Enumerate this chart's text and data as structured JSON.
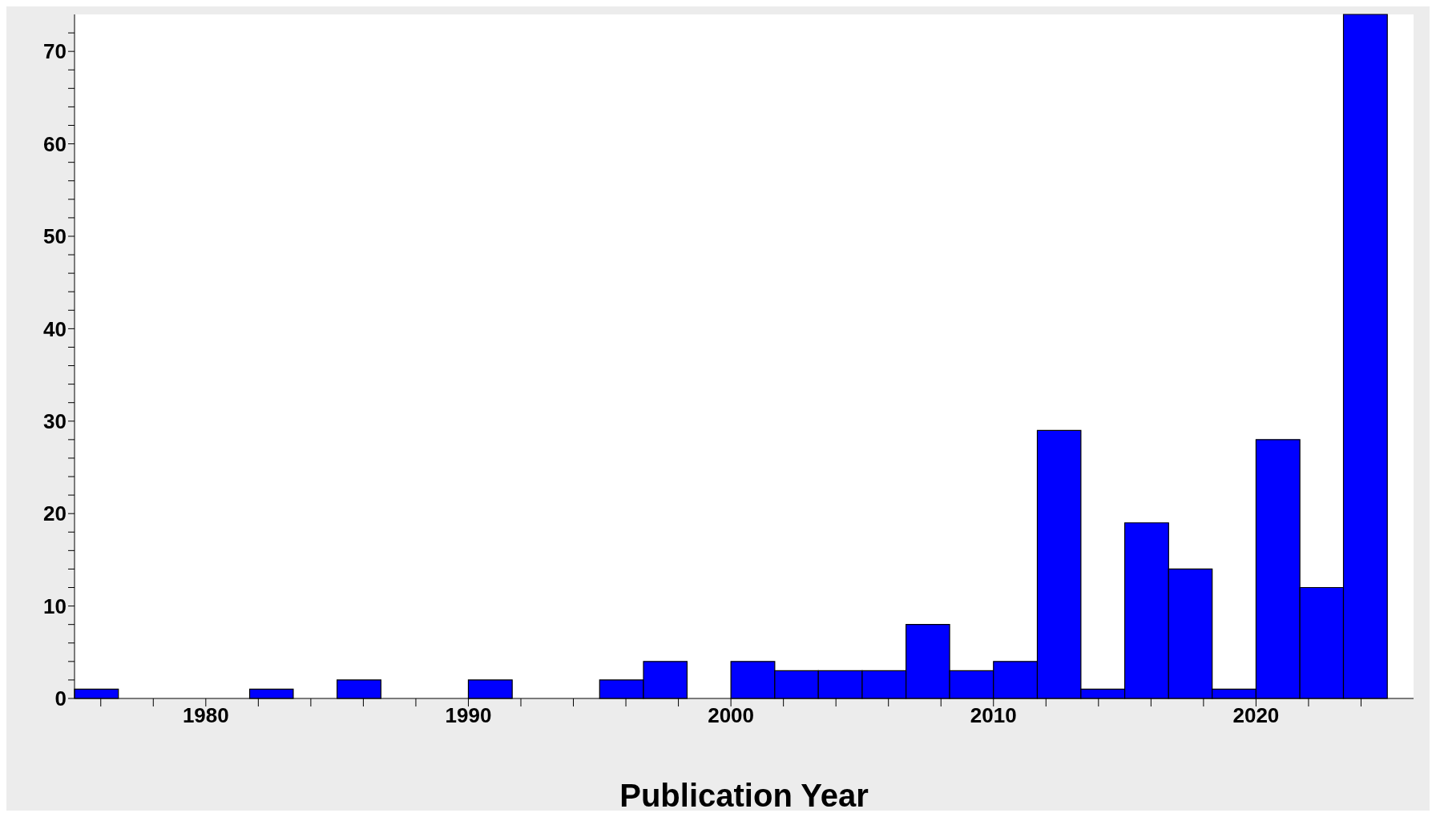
{
  "chart_data": {
    "type": "histogram",
    "xlabel": "Publication Year",
    "bins": [
      1975,
      1976.67,
      1978.33,
      1980,
      1981.67,
      1983.33,
      1985,
      1986.67,
      1988.33,
      1990,
      1991.67,
      1993.33,
      1995,
      1996.67,
      1998.33,
      2000,
      2001.67,
      2003.33,
      2005,
      2006.67,
      2008.33,
      2010,
      2011.67,
      2013.33,
      2015,
      2016.67,
      2018.33,
      2020,
      2021.67,
      2023.33,
      2025
    ],
    "values": [
      1,
      0,
      0,
      0,
      1,
      0,
      2,
      0,
      0,
      2,
      0,
      0,
      2,
      4,
      0,
      4,
      3,
      3,
      3,
      8,
      3,
      4,
      29,
      1,
      19,
      14,
      1,
      28,
      12,
      74
    ],
    "color": "#0000ff",
    "xlim": [
      1975,
      2026
    ],
    "xticks": [
      {
        "value": 1976,
        "label": null
      },
      {
        "value": 1978,
        "label": null
      },
      1980,
      {
        "value": 1982,
        "label": null
      },
      {
        "value": 1984,
        "label": null
      },
      {
        "value": 1986,
        "label": null
      },
      {
        "value": 1988,
        "label": null
      },
      1990,
      {
        "value": 1992,
        "label": null
      },
      {
        "value": 1994,
        "label": null
      },
      {
        "value": 1996,
        "label": null
      },
      {
        "value": 1998,
        "label": null
      },
      2000,
      {
        "value": 2002,
        "label": null
      },
      {
        "value": 2004,
        "label": null
      },
      {
        "value": 2006,
        "label": null
      },
      {
        "value": 2008,
        "label": null
      },
      2010,
      {
        "value": 2012,
        "label": null
      },
      {
        "value": 2014,
        "label": null
      },
      {
        "value": 2016,
        "label": null
      },
      {
        "value": 2018,
        "label": null
      },
      2020,
      {
        "value": 2022,
        "label": null
      },
      {
        "value": 2024,
        "label": null
      }
    ],
    "ylim": [
      0,
      74
    ],
    "yticks": [
      0,
      {
        "value": 2,
        "label": null
      },
      {
        "value": 4,
        "label": null
      },
      {
        "value": 6,
        "label": null
      },
      {
        "value": 8,
        "label": null
      },
      10,
      {
        "value": 12,
        "label": null
      },
      {
        "value": 14,
        "label": null
      },
      {
        "value": 16,
        "label": null
      },
      {
        "value": 18,
        "label": null
      },
      20,
      {
        "value": 22,
        "label": null
      },
      {
        "value": 24,
        "label": null
      },
      {
        "value": 26,
        "label": null
      },
      {
        "value": 28,
        "label": null
      },
      30,
      {
        "value": 32,
        "label": null
      },
      {
        "value": 34,
        "label": null
      },
      {
        "value": 36,
        "label": null
      },
      {
        "value": 38,
        "label": null
      },
      40,
      {
        "value": 42,
        "label": null
      },
      {
        "value": 44,
        "label": null
      },
      {
        "value": 46,
        "label": null
      },
      {
        "value": 48,
        "label": null
      },
      50,
      {
        "value": 52,
        "label": null
      },
      {
        "value": 54,
        "label": null
      },
      {
        "value": 56,
        "label": null
      },
      {
        "value": 58,
        "label": null
      },
      60,
      {
        "value": 62,
        "label": null
      },
      {
        "value": 64,
        "label": null
      },
      {
        "value": 66,
        "label": null
      },
      {
        "value": 68,
        "label": null
      },
      70,
      {
        "value": 72,
        "label": null
      }
    ],
    "grid": false
  }
}
